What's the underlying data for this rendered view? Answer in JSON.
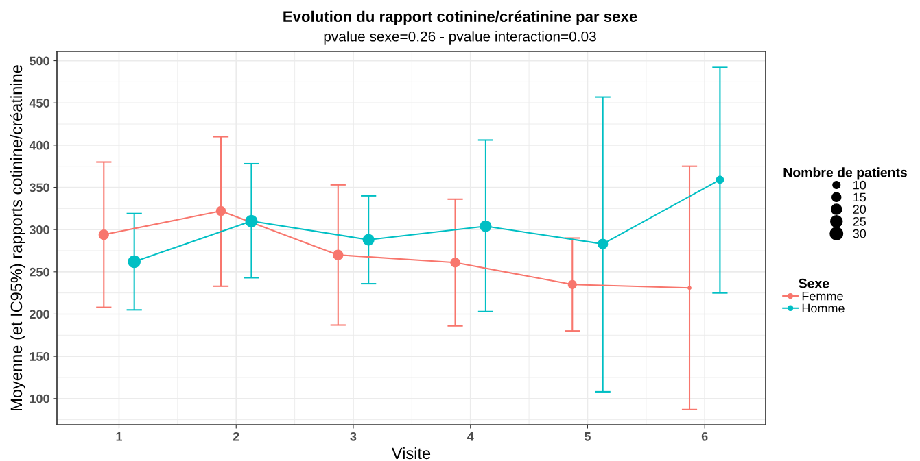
{
  "chart_data": {
    "type": "bubble",
    "title": "Evolution du rapport cotinine/créatinine par sexe",
    "subtitle": "pvalue sexe=0.26 - pvalue interaction=0.03",
    "xlabel": "Visite",
    "ylabel": "Moyenne (et IC95%) rapports cotinine/créatinine",
    "legend_title": [
      "Nombre de patients",
      "Sexe"
    ],
    "xlim": [
      0.47,
      6.52
    ],
    "xticks": [
      1,
      2,
      3,
      4,
      5,
      6
    ],
    "ylim": [
      69,
      511
    ],
    "yticks": [
      100,
      150,
      200,
      250,
      300,
      350,
      400,
      450,
      500
    ],
    "grid": true,
    "legend": "right",
    "marker": "circle",
    "line_style": "solid",
    "size_legend": [
      10,
      15,
      20,
      25,
      30
    ],
    "series": [
      {
        "type": "line",
        "marker": "none",
        "color": "#f8766d",
        "x": [
          0.87,
          1.87,
          2.87,
          3.87,
          4.87,
          5.87
        ],
        "values": [
          294,
          322,
          270,
          261,
          235,
          231
        ]
      },
      {
        "type": "line",
        "marker": "none",
        "color": "#00bfc4",
        "x": [
          1.13,
          2.13,
          3.13,
          4.13,
          5.13,
          6.13
        ],
        "values": [
          262,
          310,
          288,
          304,
          283,
          359
        ]
      },
      {
        "name": "Femme",
        "color": "#f8766d",
        "x": [
          0.87,
          1.87,
          2.87,
          3.87,
          4.87,
          5.87
        ],
        "values": [
          294,
          322,
          270,
          261,
          235,
          231
        ],
        "errors": [
          [
            208,
            380
          ],
          [
            233,
            410
          ],
          [
            187,
            353
          ],
          [
            186,
            336
          ],
          [
            180,
            290
          ],
          [
            87,
            375
          ]
        ],
        "sizes": [
          20,
          18,
          20,
          18,
          15,
          3
        ]
      },
      {
        "name": "Homme",
        "color": "#00bfc4",
        "x": [
          1.13,
          2.13,
          3.13,
          4.13,
          5.13,
          6.13
        ],
        "values": [
          262,
          310,
          288,
          304,
          283,
          359
        ],
        "errors": [
          [
            205,
            319
          ],
          [
            243,
            378
          ],
          [
            236,
            340
          ],
          [
            203,
            406
          ],
          [
            108,
            457
          ],
          [
            225,
            492
          ]
        ],
        "sizes": [
          30,
          28,
          25,
          25,
          20,
          12
        ]
      }
    ]
  }
}
